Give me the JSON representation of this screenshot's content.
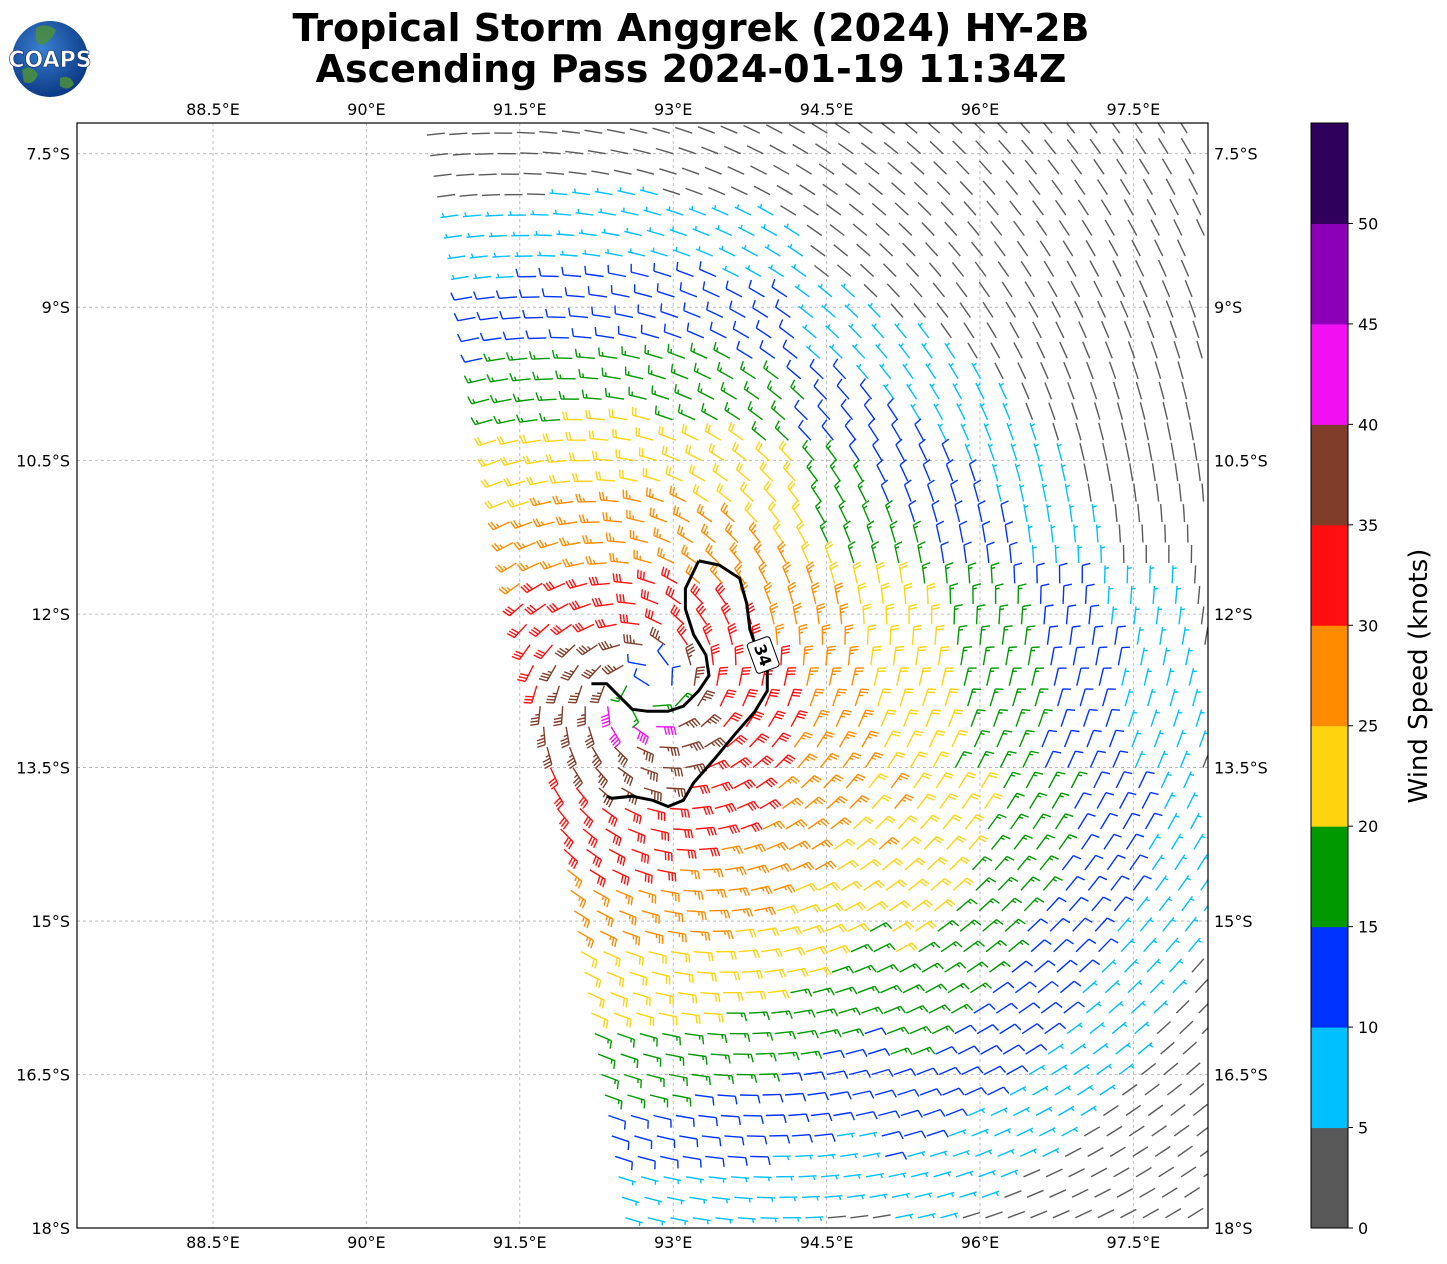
{
  "logo": {
    "text": "COAPS"
  },
  "chart_data": {
    "type": "wind-barb",
    "title": "Tropical Storm Anggrek (2024) HY-2B",
    "subtitle": "Ascending Pass 2024-01-19 11:34Z",
    "x_ticks": [
      {
        "value": 88.5,
        "label": "88.5°E"
      },
      {
        "value": 90,
        "label": "90°E"
      },
      {
        "value": 91.5,
        "label": "91.5°E"
      },
      {
        "value": 93,
        "label": "93°E"
      },
      {
        "value": 94.5,
        "label": "94.5°E"
      },
      {
        "value": 96,
        "label": "96°E"
      },
      {
        "value": 97.5,
        "label": "97.5°E"
      }
    ],
    "y_ticks": [
      {
        "value": -7.5,
        "label": "7.5°S"
      },
      {
        "value": -9,
        "label": "9°S"
      },
      {
        "value": -10.5,
        "label": "10.5°S"
      },
      {
        "value": -12,
        "label": "12°S"
      },
      {
        "value": -13.5,
        "label": "13.5°S"
      },
      {
        "value": -15,
        "label": "15°S"
      },
      {
        "value": -16.5,
        "label": "16.5°S"
      },
      {
        "value": -18,
        "label": "18°S"
      }
    ],
    "xlim": [
      87.17,
      98.23
    ],
    "ylim": [
      -18.0,
      -7.2
    ],
    "grid": true,
    "center": {
      "lon": 92.75,
      "lat": -12.75
    },
    "swath_edge": {
      "north": [
        [
          90.7,
          -7.2
        ],
        [
          92.5,
          -18.0
        ]
      ]
    },
    "colorbar": {
      "label": "Wind Speed (knots)",
      "ticks": [
        "0",
        "5",
        "10",
        "15",
        "20",
        "25",
        "30",
        "35",
        "40",
        "45",
        "50"
      ],
      "bins": [
        {
          "min": 0,
          "max": 5,
          "color": "#595959"
        },
        {
          "min": 5,
          "max": 10,
          "color": "#00bfff"
        },
        {
          "min": 10,
          "max": 15,
          "color": "#0033ff"
        },
        {
          "min": 15,
          "max": 20,
          "color": "#009900"
        },
        {
          "min": 20,
          "max": 25,
          "color": "#ffd40f"
        },
        {
          "min": 25,
          "max": 30,
          "color": "#ff8c00"
        },
        {
          "min": 30,
          "max": 35,
          "color": "#ff0f0f"
        },
        {
          "min": 35,
          "max": 40,
          "color": "#803d2a"
        },
        {
          "min": 40,
          "max": 45,
          "color": "#f20ff2"
        },
        {
          "min": 45,
          "max": 50,
          "color": "#8c00b8"
        },
        {
          "min": 50,
          "max": 55,
          "color": "#2e0059"
        }
      ]
    },
    "contour": {
      "level_label": "34",
      "color": "#000000",
      "points": [
        [
          93.25,
          -11.48
        ],
        [
          93.45,
          -11.52
        ],
        [
          93.65,
          -11.65
        ],
        [
          93.72,
          -11.9
        ],
        [
          93.75,
          -12.15
        ],
        [
          93.82,
          -12.35
        ],
        [
          93.92,
          -12.55
        ],
        [
          93.92,
          -12.75
        ],
        [
          93.8,
          -12.95
        ],
        [
          93.6,
          -13.18
        ],
        [
          93.4,
          -13.42
        ],
        [
          93.2,
          -13.65
        ],
        [
          93.1,
          -13.82
        ],
        [
          92.95,
          -13.88
        ],
        [
          92.8,
          -13.82
        ],
        [
          92.6,
          -13.78
        ],
        [
          92.4,
          -13.8
        ],
        [
          92.35,
          -13.78
        ]
      ],
      "points2": [
        [
          93.25,
          -11.48
        ],
        [
          93.12,
          -11.75
        ],
        [
          93.12,
          -11.95
        ],
        [
          93.2,
          -12.2
        ],
        [
          93.32,
          -12.4
        ],
        [
          93.35,
          -12.6
        ],
        [
          93.25,
          -12.75
        ],
        [
          93.1,
          -12.9
        ],
        [
          92.95,
          -12.95
        ],
        [
          92.75,
          -12.95
        ],
        [
          92.6,
          -12.93
        ],
        [
          92.45,
          -12.78
        ],
        [
          92.35,
          -12.68
        ],
        [
          92.2,
          -12.68
        ]
      ]
    }
  }
}
